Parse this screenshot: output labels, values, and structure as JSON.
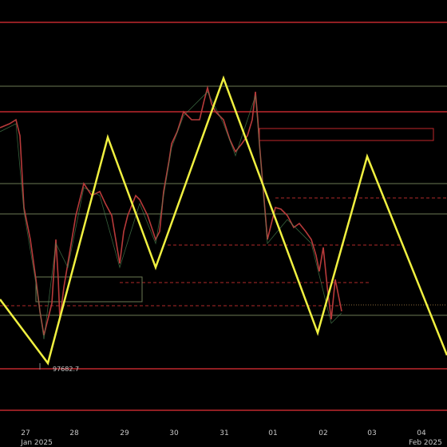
{
  "time_axis": {
    "day_labels": [
      "27",
      "28",
      "29",
      "30",
      "31",
      "01",
      "02",
      "03",
      "04"
    ],
    "month_labels": [
      "Jan 2025",
      "Feb 2025"
    ]
  },
  "annotations": {
    "low_price": "97682.7"
  }
}
